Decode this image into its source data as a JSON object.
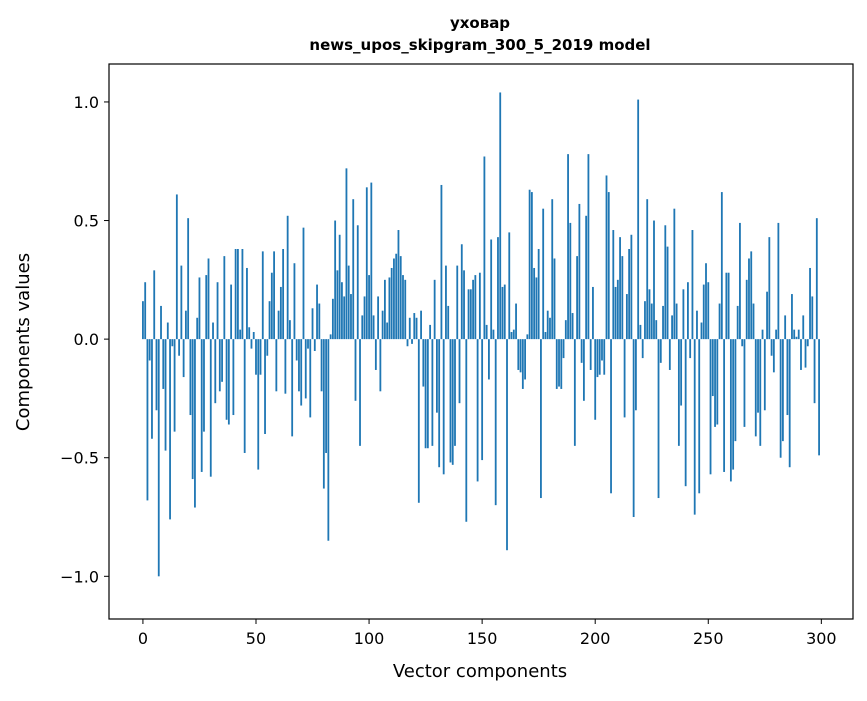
{
  "chart_data": {
    "type": "bar",
    "title": [
      "уховар",
      "news_upos_skipgram_300_5_2019 model"
    ],
    "xlabel": "Vector components",
    "ylabel": "Components values",
    "xlim": [
      -15,
      314
    ],
    "ylim": [
      -1.18,
      1.16
    ],
    "xticks": [
      0,
      50,
      100,
      150,
      200,
      250,
      300
    ],
    "xtick_labels": [
      "0",
      "50",
      "100",
      "150",
      "200",
      "250",
      "300"
    ],
    "yticks": [
      -1.0,
      -0.5,
      0.0,
      0.5,
      1.0
    ],
    "ytick_labels": [
      "−1.0",
      "−0.5",
      "0.0",
      "0.5",
      "1.0"
    ],
    "bar_color": "#1f77b4",
    "grid": false,
    "values": [
      0.16,
      0.24,
      -0.68,
      -0.09,
      -0.42,
      0.29,
      -0.3,
      -1.0,
      0.14,
      -0.21,
      -0.47,
      0.07,
      -0.76,
      -0.03,
      -0.39,
      0.61,
      -0.07,
      0.31,
      -0.16,
      0.12,
      0.51,
      -0.32,
      -0.59,
      -0.71,
      0.09,
      0.26,
      -0.56,
      -0.39,
      0.27,
      0.34,
      -0.58,
      0.07,
      -0.27,
      0.24,
      -0.22,
      -0.18,
      0.35,
      -0.34,
      -0.36,
      0.23,
      -0.32,
      0.38,
      0.38,
      0.04,
      0.38,
      -0.48,
      0.3,
      0.05,
      -0.04,
      0.03,
      -0.15,
      -0.55,
      -0.15,
      0.37,
      -0.4,
      -0.07,
      0.16,
      0.28,
      0.37,
      -0.22,
      0.12,
      0.22,
      0.38,
      -0.23,
      0.52,
      0.08,
      -0.41,
      0.32,
      -0.09,
      -0.22,
      -0.28,
      0.47,
      -0.25,
      -0.04,
      -0.33,
      0.13,
      -0.05,
      0.23,
      0.15,
      -0.22,
      -0.63,
      -0.48,
      -0.85,
      0.02,
      0.17,
      0.5,
      0.29,
      0.44,
      0.24,
      0.18,
      0.72,
      0.31,
      0.19,
      0.59,
      -0.26,
      0.48,
      -0.45,
      0.1,
      0.18,
      0.64,
      0.27,
      0.66,
      0.1,
      -0.13,
      0.18,
      -0.22,
      0.12,
      0.25,
      0.07,
      0.26,
      0.3,
      0.34,
      0.36,
      0.46,
      0.35,
      0.27,
      0.25,
      -0.03,
      0.09,
      -0.02,
      0.11,
      0.09,
      -0.69,
      0.12,
      -0.2,
      -0.46,
      -0.46,
      0.06,
      -0.45,
      0.25,
      -0.31,
      -0.54,
      0.65,
      -0.57,
      0.31,
      0.14,
      -0.52,
      -0.53,
      -0.45,
      0.31,
      -0.27,
      0.4,
      0.29,
      -0.77,
      0.21,
      0.21,
      0.25,
      0.27,
      -0.6,
      0.28,
      -0.51,
      0.77,
      0.06,
      -0.17,
      0.42,
      0.04,
      -0.7,
      0.43,
      1.04,
      0.22,
      0.23,
      -0.89,
      0.45,
      0.03,
      0.04,
      0.15,
      -0.13,
      -0.14,
      -0.21,
      -0.17,
      0.02,
      0.63,
      0.62,
      0.3,
      0.26,
      0.38,
      -0.67,
      0.55,
      0.03,
      0.12,
      0.09,
      0.59,
      0.34,
      -0.21,
      -0.2,
      -0.21,
      -0.08,
      0.08,
      0.78,
      0.49,
      0.11,
      -0.45,
      0.35,
      0.57,
      -0.1,
      -0.26,
      0.52,
      0.78,
      -0.13,
      0.22,
      -0.34,
      -0.16,
      -0.15,
      -0.09,
      -0.15,
      0.69,
      0.62,
      -0.65,
      0.46,
      0.22,
      0.25,
      0.43,
      0.35,
      -0.33,
      0.19,
      0.38,
      0.44,
      -0.75,
      -0.3,
      1.01,
      0.06,
      -0.08,
      0.16,
      0.59,
      0.21,
      0.15,
      0.5,
      0.08,
      -0.67,
      -0.1,
      0.14,
      0.48,
      0.39,
      -0.13,
      0.1,
      0.55,
      0.15,
      -0.45,
      -0.28,
      0.21,
      -0.62,
      0.24,
      -0.08,
      0.46,
      -0.74,
      0.12,
      -0.65,
      0.07,
      0.23,
      0.32,
      0.24,
      -0.57,
      -0.24,
      -0.37,
      -0.36,
      0.15,
      0.62,
      -0.56,
      0.28,
      0.28,
      -0.6,
      -0.55,
      -0.43,
      0.14,
      0.49,
      -0.03,
      -0.37,
      0.25,
      0.34,
      0.37,
      0.15,
      -0.41,
      -0.31,
      -0.45,
      0.04,
      -0.3,
      0.2,
      0.43,
      -0.07,
      -0.14,
      0.04,
      0.49,
      -0.5,
      -0.43,
      0.1,
      -0.32,
      -0.54,
      0.19,
      0.04,
      0.01,
      0.04,
      -0.13,
      0.1,
      -0.12,
      -0.03,
      0.3,
      0.18,
      -0.27,
      0.51,
      -0.49
    ]
  }
}
